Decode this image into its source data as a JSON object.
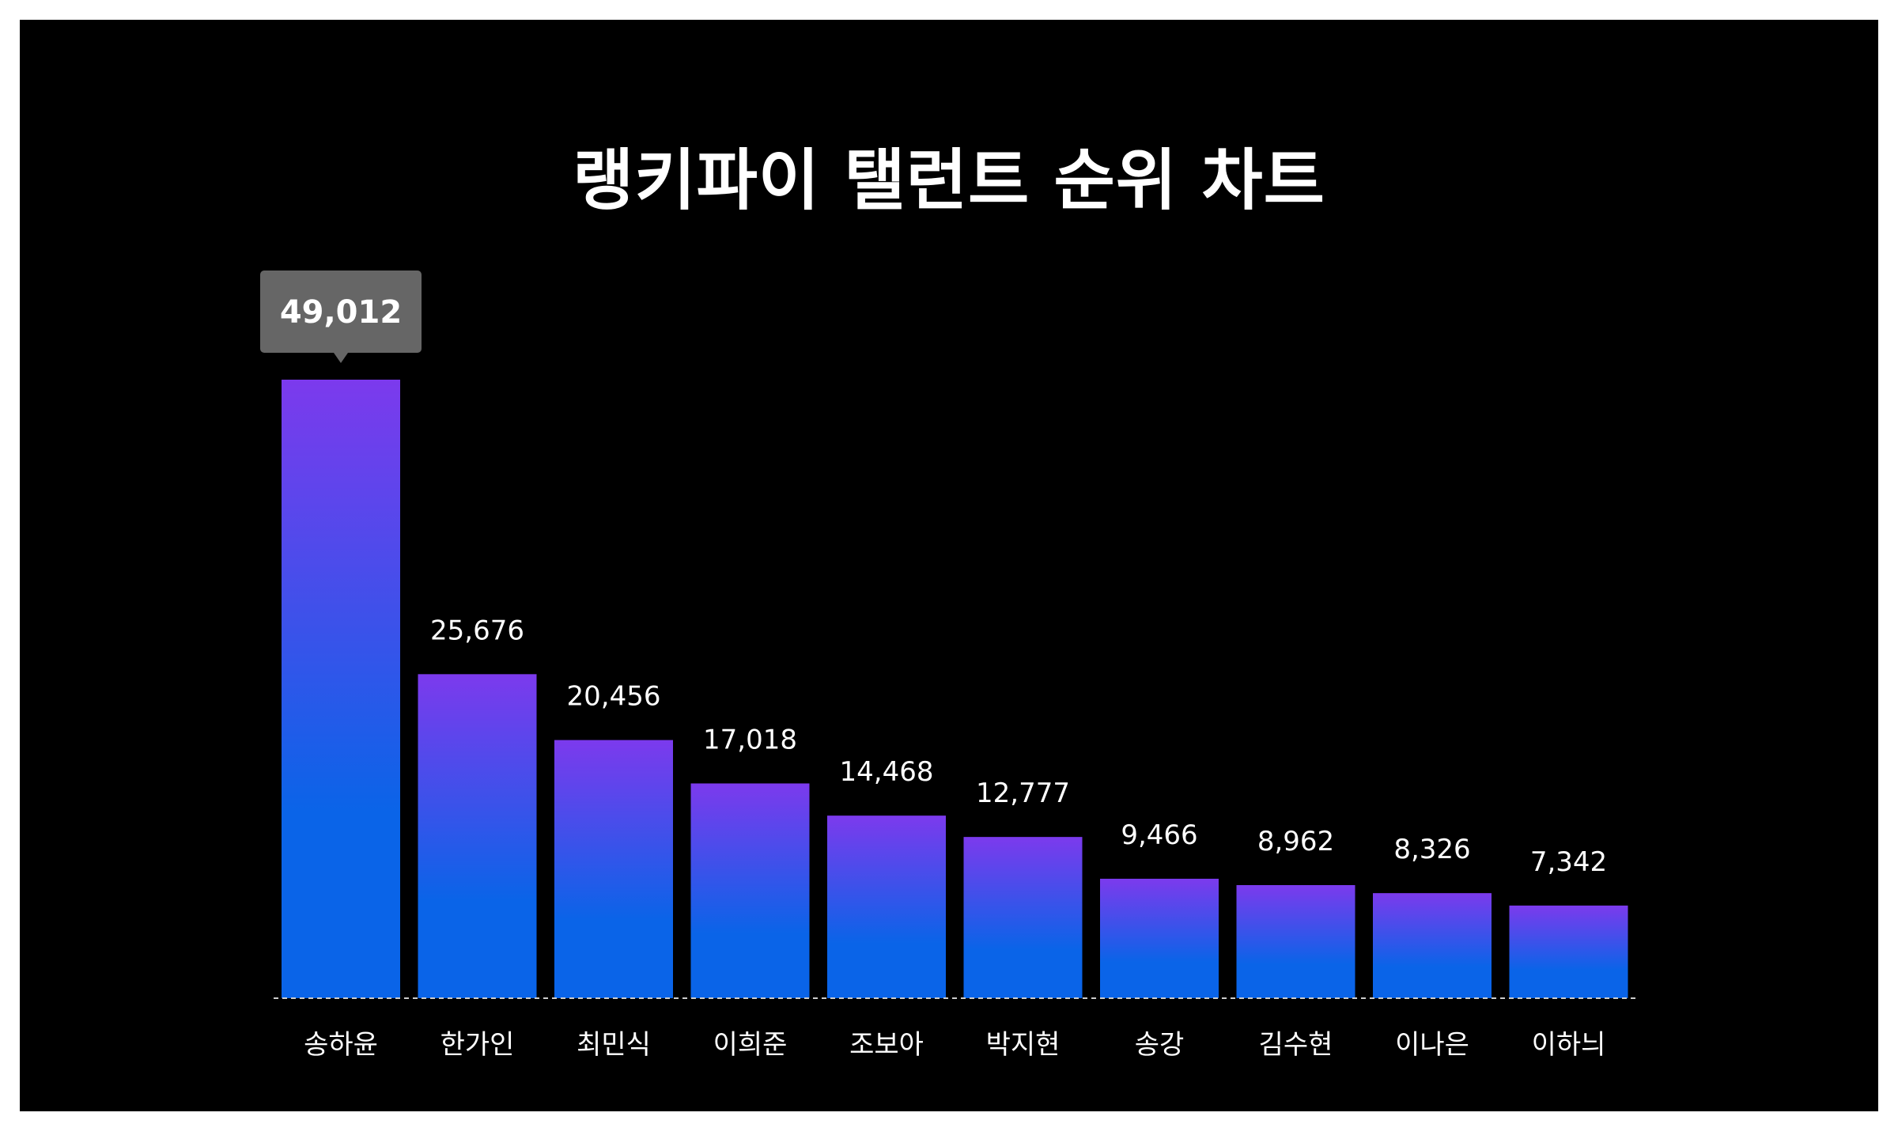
{
  "chart_data": {
    "type": "bar",
    "title": "랭키파이 탤런트 순위 차트",
    "categories": [
      "송하윤",
      "한가인",
      "최민식",
      "이희준",
      "조보아",
      "박지현",
      "송강",
      "김수현",
      "이나은",
      "이하늬"
    ],
    "values": [
      49012,
      25676,
      20456,
      17018,
      14468,
      12777,
      9466,
      8962,
      8326,
      7342
    ],
    "value_labels": [
      "49,012",
      "25,676",
      "20,456",
      "17,018",
      "14,468",
      "12,777",
      "9,466",
      "8,962",
      "8,326",
      "7,342"
    ],
    "highlight_index": 0,
    "ylim": [
      0,
      49012
    ],
    "grid": false,
    "legend": "none",
    "colors": {
      "background": "#000000",
      "bar_top": "#7c3aed",
      "bar_bottom": "#0a64e8",
      "text": "#ffffff",
      "tooltip_bg": "#666666",
      "baseline": "#cccccc"
    }
  }
}
